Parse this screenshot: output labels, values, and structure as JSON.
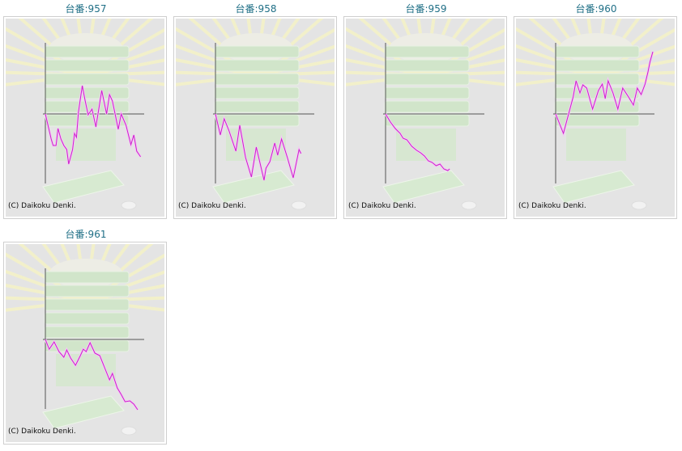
{
  "copyright": "(C) Daikoku Denki.",
  "colors": {
    "title": "#1f6f86",
    "line": "#cc22cc",
    "axis": "#555555",
    "background": "#e4e4e4"
  },
  "chart_data": [
    {
      "type": "line",
      "title": "台番:957",
      "x": [
        0,
        6,
        8,
        11,
        13,
        16,
        19,
        22,
        24,
        28,
        30,
        32,
        34,
        38,
        41,
        44,
        48,
        52,
        58,
        63,
        66,
        69,
        75,
        78,
        83,
        88,
        91,
        94,
        98
      ],
      "y": [
        0,
        -31,
        -39,
        -39,
        -18,
        -31,
        -39,
        -44,
        -62,
        -44,
        -24,
        -29,
        2,
        35,
        16,
        -1,
        6,
        -16,
        29,
        0,
        24,
        16,
        -19,
        0,
        -14,
        -38,
        -26,
        -46,
        -53
      ]
    },
    {
      "type": "line",
      "title": "台番:958",
      "x": [
        0,
        5,
        9,
        14,
        21,
        25,
        31,
        37,
        42,
        50,
        52,
        56,
        61,
        64,
        68,
        74,
        80,
        86,
        88
      ],
      "y": [
        0,
        -26,
        -6,
        -21,
        -46,
        -14,
        -54,
        -78,
        -41,
        -82,
        -67,
        -59,
        -36,
        -51,
        -31,
        -54,
        -79,
        -44,
        -49
      ]
    },
    {
      "type": "line",
      "title": "台番:959",
      "x": [
        0,
        5,
        10,
        15,
        18,
        22,
        27,
        32,
        36,
        40,
        44,
        48,
        52,
        56,
        60,
        64,
        66
      ],
      "y": [
        0,
        -10,
        -18,
        -24,
        -30,
        -32,
        -40,
        -45,
        -48,
        -52,
        -58,
        -60,
        -64,
        -62,
        -68,
        -70,
        -68
      ]
    },
    {
      "type": "line",
      "title": "台番:960",
      "x": [
        0,
        8,
        12,
        18,
        21,
        25,
        28,
        32,
        38,
        44,
        48,
        51,
        54,
        59,
        64,
        69,
        75,
        80,
        84,
        88,
        92,
        95,
        97,
        100
      ],
      "y": [
        0,
        -24,
        -6,
        21,
        41,
        26,
        36,
        32,
        6,
        29,
        37,
        19,
        41,
        26,
        6,
        32,
        21,
        11,
        32,
        24,
        37,
        52,
        64,
        77
      ]
    },
    {
      "type": "line",
      "title": "台番:961",
      "x": [
        0,
        4,
        9,
        14,
        19,
        22,
        26,
        31,
        36,
        39,
        42,
        46,
        51,
        56,
        61,
        66,
        69,
        74,
        78,
        82,
        87,
        91,
        95
      ],
      "y": [
        0,
        -12,
        -3,
        -15,
        -22,
        -13,
        -23,
        -32,
        -20,
        -12,
        -15,
        -4,
        -17,
        -20,
        -35,
        -50,
        -42,
        -60,
        -68,
        -77,
        -76,
        -80,
        -87
      ]
    }
  ]
}
